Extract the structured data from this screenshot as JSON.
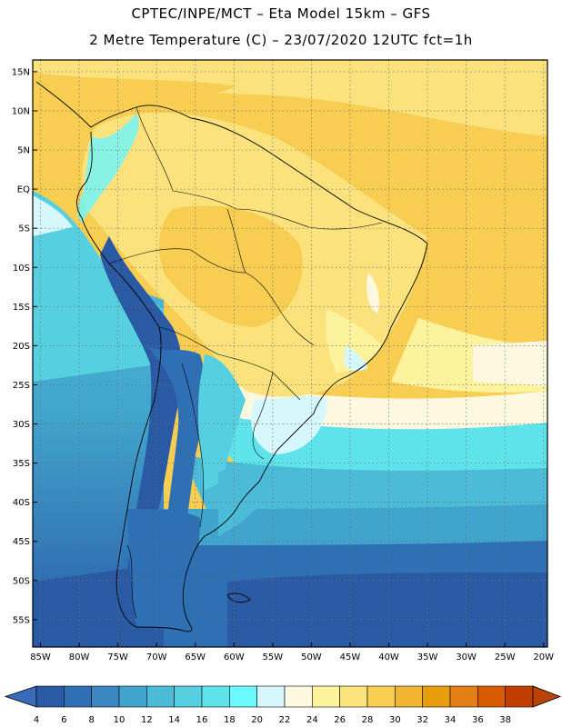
{
  "title": {
    "line1": "CPTEC/INPE/MCT –   Eta Model 15km – GFS",
    "line2": "2 Metre Temperature (C) – 23/07/2020 12UTC fct=1h"
  },
  "map": {
    "lat_labels": [
      "15N",
      "10N",
      "5N",
      "EQ",
      "5S",
      "10S",
      "15S",
      "20S",
      "25S",
      "30S",
      "35S",
      "40S",
      "45S",
      "50S",
      "55S"
    ],
    "lon_labels": [
      "85W",
      "80W",
      "75W",
      "70W",
      "65W",
      "60W",
      "55W",
      "50W",
      "45W",
      "40W",
      "35W",
      "30W",
      "25W",
      "20W"
    ],
    "lat_range": [
      16.5,
      -58.5
    ],
    "lon_range": [
      -86,
      -19.5
    ],
    "grid": true
  },
  "colorbar": {
    "labels": [
      "4",
      "6",
      "8",
      "10",
      "12",
      "14",
      "16",
      "18",
      "20",
      "22",
      "24",
      "26",
      "28",
      "30",
      "32",
      "34",
      "36",
      "38"
    ],
    "colors": [
      "#2b5aa4",
      "#2f6fb3",
      "#3a87c2",
      "#41a4cc",
      "#4cbbd7",
      "#56d0e0",
      "#5fe3ea",
      "#6cf8ff",
      "#d6f7fc",
      "#fdf8e0",
      "#fdf39d",
      "#fbe27c",
      "#f7cd52",
      "#f0b632",
      "#e89d0c",
      "#e27f17",
      "#d85a00",
      "#c23e00"
    ],
    "under_color": "#3a6bb8",
    "over_color": "#b94307"
  },
  "legend": {
    "over_arrow_color": "#b94307"
  }
}
